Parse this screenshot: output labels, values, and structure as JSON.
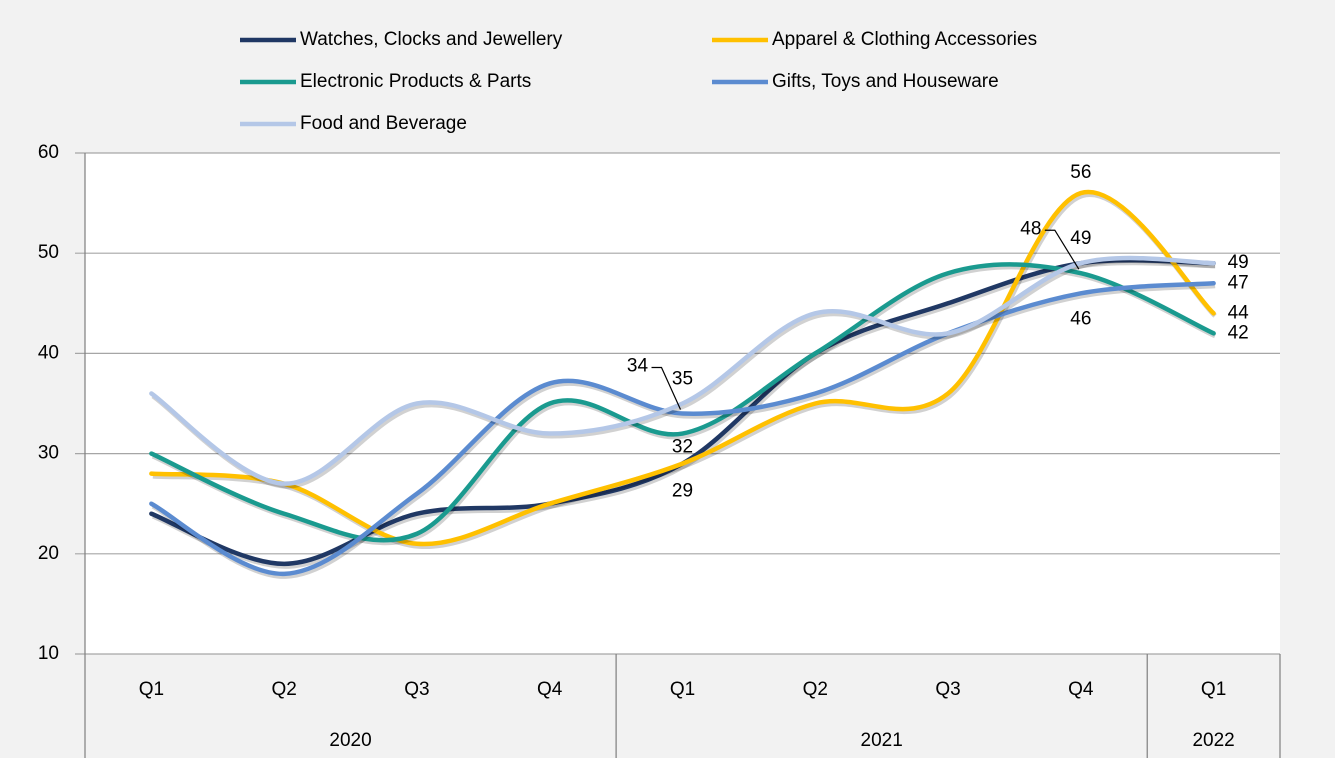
{
  "chart_data": {
    "type": "line",
    "smooth": true,
    "categories": [
      "Q1",
      "Q2",
      "Q3",
      "Q4",
      "Q1",
      "Q2",
      "Q3",
      "Q4",
      "Q1"
    ],
    "category_groups": [
      "2020",
      null,
      null,
      null,
      "2021",
      null,
      null,
      null,
      "2022"
    ],
    "series": [
      {
        "name": "Watches, Clocks and Jewellery",
        "color": "#203864",
        "values": [
          24,
          19,
          24,
          25,
          29,
          40,
          45,
          49,
          49
        ],
        "value_labels": [
          null,
          null,
          null,
          null,
          null,
          null,
          null,
          null,
          null
        ]
      },
      {
        "name": "Apparel & Clothing Accessories",
        "color": "#ffc000",
        "values": [
          28,
          27,
          21,
          25,
          29,
          35,
          36,
          56,
          44
        ],
        "value_labels": [
          null,
          null,
          null,
          null,
          "29",
          null,
          null,
          "56",
          "44"
        ]
      },
      {
        "name": "Electronic Products & Parts",
        "color": "#1a9a8f",
        "values": [
          30,
          24,
          22,
          35,
          32,
          40,
          48,
          48,
          42
        ],
        "value_labels": [
          null,
          null,
          null,
          null,
          "32",
          null,
          null,
          "48",
          "42"
        ]
      },
      {
        "name": "Gifts, Toys and Houseware",
        "color": "#5b8bd0",
        "values": [
          25,
          18,
          26,
          37,
          34,
          36,
          42,
          46,
          47
        ],
        "value_labels": [
          null,
          null,
          null,
          null,
          "34",
          null,
          null,
          "46",
          "47"
        ]
      },
      {
        "name": "Food and Beverage",
        "color": "#b4c7e7",
        "values": [
          36,
          27,
          35,
          32,
          35,
          44,
          42,
          49,
          49
        ],
        "value_labels": [
          null,
          null,
          null,
          null,
          "35",
          null,
          null,
          "49",
          "49"
        ]
      }
    ],
    "ylim": [
      10,
      60
    ],
    "yticks": [
      10,
      20,
      30,
      40,
      50,
      60
    ],
    "grid": true
  }
}
